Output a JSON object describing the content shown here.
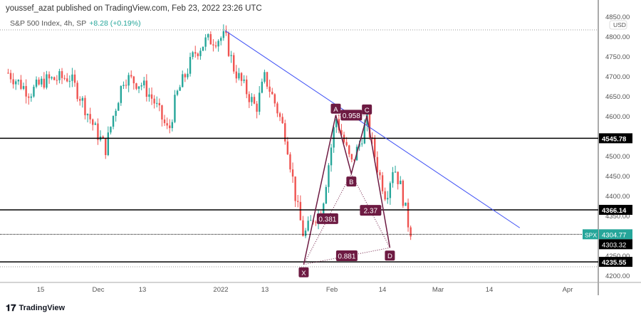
{
  "header": {
    "attribution": "youssef_azat published on TradingView.com, Feb 23, 2022 23:26 UTC"
  },
  "legend": {
    "symbol_info": "S&P 500 Index, 4h, SP",
    "change": "+8.28 (+0.19%)"
  },
  "footer": {
    "brand": "TradingView"
  },
  "chart_data": {
    "type": "candlestick",
    "currency": "USD",
    "y_ticks": [
      4850,
      4800,
      4750,
      4700,
      4650,
      4600,
      4500,
      4450,
      4400,
      4350,
      4250,
      4200
    ],
    "ylim": [
      4190,
      4860
    ],
    "x_ticks": [
      {
        "label": "15",
        "date": "2021-11-15"
      },
      {
        "label": "Dec",
        "date": "2021-12-01"
      },
      {
        "label": "13",
        "date": "2021-12-13"
      },
      {
        "label": "2022",
        "date": "2022-01-03"
      },
      {
        "label": "13",
        "date": "2022-01-13"
      },
      {
        "label": "Feb",
        "date": "2022-02-01"
      },
      {
        "label": "14",
        "date": "2022-02-14"
      },
      {
        "label": "Mar",
        "date": "2022-03-01"
      },
      {
        "label": "14",
        "date": "2022-03-14"
      },
      {
        "label": "Apr",
        "date": "2022-04-01"
      }
    ],
    "approx_close_path": [
      [
        "2021-11-06",
        4710
      ],
      [
        "2021-11-12",
        4660
      ],
      [
        "2021-11-16",
        4690
      ],
      [
        "2021-11-23",
        4700
      ],
      [
        "2021-11-26",
        4650
      ],
      [
        "2021-11-30",
        4570
      ],
      [
        "2021-12-03",
        4520
      ],
      [
        "2021-12-05",
        4600
      ],
      [
        "2021-12-08",
        4700
      ],
      [
        "2021-12-13",
        4680
      ],
      [
        "2021-12-16",
        4640
      ],
      [
        "2021-12-20",
        4560
      ],
      [
        "2021-12-22",
        4650
      ],
      [
        "2021-12-27",
        4760
      ],
      [
        "2021-12-30",
        4790
      ],
      [
        "2022-01-04",
        4800
      ],
      [
        "2022-01-06",
        4720
      ],
      [
        "2022-01-09",
        4660
      ],
      [
        "2022-01-11",
        4620
      ],
      [
        "2022-01-13",
        4700
      ],
      [
        "2022-01-16",
        4630
      ],
      [
        "2022-01-19",
        4550
      ],
      [
        "2022-01-22",
        4380
      ],
      [
        "2022-01-24",
        4300
      ],
      [
        "2022-01-27",
        4350
      ],
      [
        "2022-01-29",
        4360
      ],
      [
        "2022-02-02",
        4600
      ],
      [
        "2022-02-06",
        4480
      ],
      [
        "2022-02-08",
        4530
      ],
      [
        "2022-02-10",
        4590
      ],
      [
        "2022-02-13",
        4460
      ],
      [
        "2022-02-15",
        4400
      ],
      [
        "2022-02-17",
        4480
      ],
      [
        "2022-02-19",
        4420
      ],
      [
        "2022-02-21",
        4330
      ],
      [
        "2022-02-22",
        4305
      ]
    ],
    "horizontal_levels": [
      {
        "price": 4545.78,
        "label": "4545.78"
      },
      {
        "price": 4366.14,
        "label": "4366.14"
      },
      {
        "price": 4235.55,
        "label": "4235.55"
      }
    ],
    "last_price": {
      "symbol": "SPX",
      "price": 4304.77,
      "label": "4304.77",
      "color": "#26a69a"
    },
    "extra_price_label": {
      "price": 4303.32,
      "label": "4303.32"
    },
    "trendline": {
      "from": [
        "2022-01-04",
        4816
      ],
      "to": [
        "2022-03-21",
        4321
      ],
      "color": "#3f51f5"
    },
    "harmonic_pattern": {
      "color": "#6d1a42",
      "points": [
        {
          "label": "X",
          "date": "2022-01-24",
          "price": 4229
        },
        {
          "label": "A",
          "date": "2022-02-02",
          "price": 4604
        },
        {
          "label": "B",
          "date": "2022-02-06",
          "price": 4457
        },
        {
          "label": "C",
          "date": "2022-02-10",
          "price": 4602
        },
        {
          "label": "D",
          "date": "2022-02-16",
          "price": 4271
        }
      ],
      "ratios": [
        {
          "label": "0.958",
          "between": "A-C"
        },
        {
          "label": "0.381",
          "between": "X-B"
        },
        {
          "label": "2.37",
          "between": "B-D"
        },
        {
          "label": "0.881",
          "between": "X-D"
        }
      ]
    },
    "colors": {
      "up": "#26a69a",
      "down": "#ef5350"
    }
  }
}
